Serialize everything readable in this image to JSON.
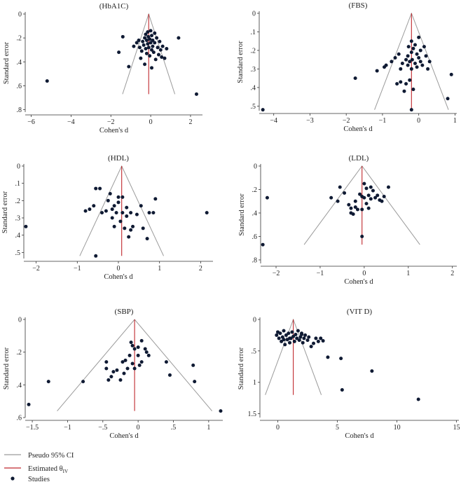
{
  "legend": {
    "ci_label": "Pseudo 95% CI",
    "est_label": "Estimated θ",
    "est_sub": "IV",
    "studies_label": "Studies"
  },
  "colors": {
    "ci": "#9a9a9a",
    "estimate": "#c0282d",
    "point": "#0f1a33",
    "axis": "#333333"
  },
  "chart_data": [
    {
      "type": "scatter",
      "title": "(HbA1C)",
      "xlabel": "Cohen's d",
      "ylabel": "Standard error",
      "xlim": [
        -6.3,
        2.6
      ],
      "ylim": [
        0,
        0.82
      ],
      "xticks": [
        -6,
        -4,
        -2,
        0,
        2
      ],
      "xtick_labels": [
        "−6",
        "−4",
        "−2",
        "0",
        "2"
      ],
      "yticks": [
        0,
        0.2,
        0.4,
        0.6,
        0.8
      ],
      "ytick_labels": [
        "0",
        ".2",
        ".4",
        ".6",
        ".8"
      ],
      "estimate": -0.1,
      "ci_se_max": 0.67,
      "points": [
        [
          -5.2,
          0.56
        ],
        [
          -1.4,
          0.19
        ],
        [
          -1.6,
          0.32
        ],
        [
          -1.1,
          0.44
        ],
        [
          -0.85,
          0.27
        ],
        [
          -0.7,
          0.24
        ],
        [
          -0.6,
          0.22
        ],
        [
          -0.55,
          0.28
        ],
        [
          -0.5,
          0.37
        ],
        [
          -0.45,
          0.31
        ],
        [
          -0.4,
          0.23
        ],
        [
          -0.35,
          0.26
        ],
        [
          -0.3,
          0.2
        ],
        [
          -0.25,
          0.17
        ],
        [
          -0.25,
          0.29
        ],
        [
          -0.2,
          0.22
        ],
        [
          -0.2,
          0.33
        ],
        [
          -0.15,
          0.15
        ],
        [
          -0.15,
          0.25
        ],
        [
          -0.12,
          0.19
        ],
        [
          -0.1,
          0.28
        ],
        [
          -0.05,
          0.21
        ],
        [
          -0.05,
          0.35
        ],
        [
          0,
          0.14
        ],
        [
          0,
          0.24
        ],
        [
          0.05,
          0.18
        ],
        [
          0.05,
          0.3
        ],
        [
          0.1,
          0.22
        ],
        [
          0.1,
          0.27
        ],
        [
          0.15,
          0.32
        ],
        [
          0.2,
          0.16
        ],
        [
          0.2,
          0.24
        ],
        [
          0.25,
          0.38
        ],
        [
          0.3,
          0.2
        ],
        [
          0.35,
          0.28
        ],
        [
          0.4,
          0.34
        ],
        [
          0.45,
          0.23
        ],
        [
          0.5,
          0.3
        ],
        [
          0.55,
          0.36
        ],
        [
          0.6,
          0.27
        ],
        [
          0.7,
          0.37
        ],
        [
          0.8,
          0.29
        ],
        [
          0.05,
          0.45
        ],
        [
          -0.3,
          0.42
        ],
        [
          1.4,
          0.2
        ],
        [
          2.3,
          0.67
        ]
      ]
    },
    {
      "type": "scatter",
      "title": "(FBS)",
      "xlabel": "Cohen's d",
      "ylabel": "Standard error",
      "xlim": [
        -4.4,
        1.05
      ],
      "ylim": [
        0,
        0.525
      ],
      "xticks": [
        -4,
        -3,
        -2,
        -1,
        0,
        1
      ],
      "xtick_labels": [
        "−4",
        "−3",
        "−2",
        "−1",
        "0",
        "1"
      ],
      "yticks": [
        0,
        0.1,
        0.2,
        0.3,
        0.4,
        0.5
      ],
      "ytick_labels": [
        "0",
        ".1",
        ".2",
        ".3",
        ".4",
        ".5"
      ],
      "estimate": -0.2,
      "ci_se_max": 0.52,
      "points": [
        [
          -4.3,
          0.52
        ],
        [
          -1.75,
          0.35
        ],
        [
          -1.15,
          0.31
        ],
        [
          -0.95,
          0.29
        ],
        [
          -0.9,
          0.28
        ],
        [
          -0.75,
          0.26
        ],
        [
          -0.65,
          0.24
        ],
        [
          -0.6,
          0.38
        ],
        [
          -0.55,
          0.22
        ],
        [
          -0.5,
          0.37
        ],
        [
          -0.5,
          0.3
        ],
        [
          -0.45,
          0.27
        ],
        [
          -0.4,
          0.42
        ],
        [
          -0.35,
          0.25
        ],
        [
          -0.35,
          0.38
        ],
        [
          -0.3,
          0.23
        ],
        [
          -0.3,
          0.28
        ],
        [
          -0.28,
          0.18
        ],
        [
          -0.25,
          0.26
        ],
        [
          -0.25,
          0.36
        ],
        [
          -0.2,
          0.15
        ],
        [
          -0.2,
          0.21
        ],
        [
          -0.2,
          0.3
        ],
        [
          -0.18,
          0.25
        ],
        [
          -0.15,
          0.19
        ],
        [
          -0.15,
          0.41
        ],
        [
          -0.1,
          0.17
        ],
        [
          -0.1,
          0.27
        ],
        [
          -0.05,
          0.22
        ],
        [
          -0.05,
          0.29
        ],
        [
          0,
          0.24
        ],
        [
          0,
          0.13
        ],
        [
          0.05,
          0.2
        ],
        [
          0.05,
          0.26
        ],
        [
          0.1,
          0.28
        ],
        [
          0.15,
          0.18
        ],
        [
          0.2,
          0.23
        ],
        [
          0.25,
          0.3
        ],
        [
          0.3,
          0.26
        ],
        [
          -0.2,
          0.52
        ],
        [
          0.8,
          0.46
        ],
        [
          0.9,
          0.33
        ]
      ]
    },
    {
      "type": "scatter",
      "title": "(HDL)",
      "xlabel": "Cohen's d",
      "ylabel": "Standard error",
      "xlim": [
        -2.3,
        2.3
      ],
      "ylim": [
        0,
        0.535
      ],
      "xticks": [
        -2,
        -1,
        0,
        1,
        2
      ],
      "xtick_labels": [
        "−2",
        "−1",
        "0",
        "1",
        "2"
      ],
      "yticks": [
        0,
        0.1,
        0.2,
        0.3,
        0.4,
        0.5
      ],
      "ytick_labels": [
        "0",
        ".1",
        ".2",
        ".3",
        ".4",
        ".5"
      ],
      "estimate": 0.08,
      "ci_se_max": 0.52,
      "points": [
        [
          -2.25,
          0.35
        ],
        [
          -0.55,
          0.52
        ],
        [
          -0.8,
          0.26
        ],
        [
          -0.7,
          0.25
        ],
        [
          -0.6,
          0.23
        ],
        [
          -0.55,
          0.13
        ],
        [
          -0.45,
          0.13
        ],
        [
          -0.4,
          0.27
        ],
        [
          -0.3,
          0.26
        ],
        [
          -0.25,
          0.2
        ],
        [
          -0.2,
          0.16
        ],
        [
          -0.15,
          0.25
        ],
        [
          -0.15,
          0.3
        ],
        [
          -0.1,
          0.23
        ],
        [
          -0.1,
          0.35
        ],
        [
          -0.05,
          0.27
        ],
        [
          0,
          0.18
        ],
        [
          0,
          0.21
        ],
        [
          0.05,
          0.32
        ],
        [
          0.1,
          0.18
        ],
        [
          0.1,
          0.27
        ],
        [
          0.15,
          0.36
        ],
        [
          0.2,
          0.24
        ],
        [
          0.2,
          0.29
        ],
        [
          0.25,
          0.41
        ],
        [
          0.3,
          0.37
        ],
        [
          0.3,
          0.27
        ],
        [
          0.35,
          0.35
        ],
        [
          0.45,
          0.28
        ],
        [
          0.55,
          0.23
        ],
        [
          0.6,
          0.36
        ],
        [
          0.7,
          0.42
        ],
        [
          0.75,
          0.27
        ],
        [
          0.85,
          0.27
        ],
        [
          0.9,
          0.19
        ],
        [
          2.15,
          0.27
        ]
      ]
    },
    {
      "type": "scatter",
      "title": "(LDL)",
      "xlabel": "Cohen's d",
      "ylabel": "Standard error",
      "xlim": [
        -2.35,
        2.1
      ],
      "ylim": [
        0,
        0.83
      ],
      "xticks": [
        -2,
        -1,
        0,
        1,
        2
      ],
      "xtick_labels": [
        "−2",
        "−1",
        "0",
        "1",
        "2"
      ],
      "yticks": [
        0,
        0.2,
        0.4,
        0.6,
        0.8
      ],
      "ytick_labels": [
        "0",
        ".2",
        ".4",
        ".6",
        ".8"
      ],
      "estimate": -0.05,
      "ci_se_max": 0.67,
      "points": [
        [
          -2.3,
          0.67
        ],
        [
          -2.2,
          0.27
        ],
        [
          -0.75,
          0.27
        ],
        [
          -0.6,
          0.3
        ],
        [
          -0.55,
          0.18
        ],
        [
          -0.45,
          0.23
        ],
        [
          -0.35,
          0.33
        ],
        [
          -0.3,
          0.4
        ],
        [
          -0.3,
          0.36
        ],
        [
          -0.25,
          0.41
        ],
        [
          -0.2,
          0.3
        ],
        [
          -0.2,
          0.35
        ],
        [
          -0.15,
          0.37
        ],
        [
          -0.1,
          0.24
        ],
        [
          -0.05,
          0.26
        ],
        [
          -0.05,
          0.37
        ],
        [
          0,
          0.15
        ],
        [
          0,
          0.27
        ],
        [
          0.05,
          0.19
        ],
        [
          0.05,
          0.32
        ],
        [
          0.1,
          0.25
        ],
        [
          0.1,
          0.36
        ],
        [
          0.15,
          0.18
        ],
        [
          0.15,
          0.28
        ],
        [
          0.2,
          0.21
        ],
        [
          0.25,
          0.27
        ],
        [
          0.3,
          0.25
        ],
        [
          0.35,
          0.29
        ],
        [
          0.4,
          0.3
        ],
        [
          0.45,
          0.26
        ],
        [
          0.55,
          0.18
        ],
        [
          -0.05,
          0.6
        ]
      ]
    },
    {
      "type": "scatter",
      "title": "(SBP)",
      "xlabel": "Cohen's d",
      "ylabel": "Standard error",
      "xlim": [
        -1.6,
        1.2
      ],
      "ylim": [
        0,
        0.6
      ],
      "xticks": [
        -1.5,
        -1,
        -0.5,
        0,
        0.5,
        1
      ],
      "xtick_labels": [
        "−1.5",
        "−1",
        "−.5",
        "0",
        ".5",
        "1"
      ],
      "yticks": [
        0,
        0.2,
        0.4,
        0.6
      ],
      "ytick_labels": [
        "0",
        ".2",
        ".4",
        ".6"
      ],
      "estimate": -0.05,
      "ci_se_max": 0.56,
      "points": [
        [
          -1.55,
          0.52
        ],
        [
          -1.27,
          0.38
        ],
        [
          -0.78,
          0.38
        ],
        [
          -0.45,
          0.26
        ],
        [
          -0.45,
          0.3
        ],
        [
          -0.42,
          0.37
        ],
        [
          -0.38,
          0.35
        ],
        [
          -0.35,
          0.32
        ],
        [
          -0.3,
          0.31
        ],
        [
          -0.25,
          0.37
        ],
        [
          -0.22,
          0.26
        ],
        [
          -0.2,
          0.33
        ],
        [
          -0.18,
          0.25
        ],
        [
          -0.15,
          0.3
        ],
        [
          -0.12,
          0.22
        ],
        [
          -0.1,
          0.14
        ],
        [
          -0.08,
          0.16
        ],
        [
          -0.08,
          0.27
        ],
        [
          -0.05,
          0.18
        ],
        [
          -0.05,
          0.3
        ],
        [
          0,
          0.17
        ],
        [
          0,
          0.22
        ],
        [
          0.02,
          0.28
        ],
        [
          0.05,
          0.26
        ],
        [
          0.05,
          0.13
        ],
        [
          0.1,
          0.18
        ],
        [
          0.12,
          0.2
        ],
        [
          0.15,
          0.22
        ],
        [
          0.4,
          0.26
        ],
        [
          0.45,
          0.34
        ],
        [
          0.78,
          0.28
        ],
        [
          0.8,
          0.38
        ],
        [
          1.17,
          0.56
        ]
      ]
    },
    {
      "type": "scatter",
      "title": "(VIT D)",
      "xlabel": "Cohen's d",
      "ylabel": "Standard error",
      "xlim": [
        -1.5,
        15.2
      ],
      "ylim": [
        0,
        1.56
      ],
      "xticks": [
        0,
        5,
        10,
        15
      ],
      "xtick_labels": [
        "0",
        "5",
        "10",
        "15"
      ],
      "yticks": [
        0,
        0.5,
        1,
        1.5
      ],
      "ytick_labels": [
        "0",
        ".5",
        "1",
        "1.5"
      ],
      "estimate": 1.3,
      "ci_se_max": 1.2,
      "points": [
        [
          -0.1,
          0.25
        ],
        [
          0,
          0.2
        ],
        [
          0.1,
          0.3
        ],
        [
          0.2,
          0.22
        ],
        [
          0.3,
          0.35
        ],
        [
          0.4,
          0.28
        ],
        [
          0.5,
          0.18
        ],
        [
          0.6,
          0.4
        ],
        [
          0.7,
          0.25
        ],
        [
          0.8,
          0.32
        ],
        [
          0.9,
          0.22
        ],
        [
          1,
          0.37
        ],
        [
          1.1,
          0.3
        ],
        [
          1.2,
          0.2
        ],
        [
          1.3,
          0.27
        ],
        [
          1.4,
          0.35
        ],
        [
          1.5,
          0.24
        ],
        [
          1.6,
          0.3
        ],
        [
          1.7,
          0.18
        ],
        [
          1.8,
          0.33
        ],
        [
          1.9,
          0.28
        ],
        [
          2,
          0.22
        ],
        [
          2.1,
          0.37
        ],
        [
          2.2,
          0.3
        ],
        [
          2.3,
          0.25
        ],
        [
          2.5,
          0.33
        ],
        [
          2.6,
          0.28
        ],
        [
          2.8,
          0.43
        ],
        [
          3,
          0.38
        ],
        [
          3.2,
          0.3
        ],
        [
          3.4,
          0.35
        ],
        [
          3.6,
          0.3
        ],
        [
          3.8,
          0.34
        ],
        [
          2.0,
          0.24
        ],
        [
          1.0,
          0.3
        ],
        [
          0.5,
          0.32
        ],
        [
          4.2,
          0.6
        ],
        [
          5.3,
          0.62
        ],
        [
          5.4,
          1.12
        ],
        [
          7.9,
          0.82
        ],
        [
          11.8,
          1.27
        ]
      ]
    }
  ]
}
